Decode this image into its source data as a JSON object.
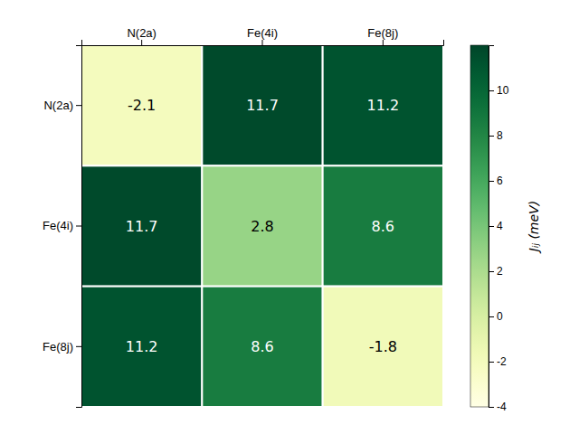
{
  "chart_data": {
    "type": "heatmap",
    "categories": [
      "N(2a)",
      "Fe(4i)",
      "Fe(8j)"
    ],
    "values": [
      [
        -2.1,
        11.7,
        11.2
      ],
      [
        11.7,
        2.8,
        8.6
      ],
      [
        11.2,
        8.6,
        -1.8
      ]
    ],
    "colorbar_label": "Jᵢⱼ (meV)",
    "colorbar_range": [
      -4,
      12
    ],
    "colorbar_ticks": [
      -4,
      -2,
      0,
      2,
      4,
      6,
      8,
      10
    ],
    "data_labels": true
  }
}
